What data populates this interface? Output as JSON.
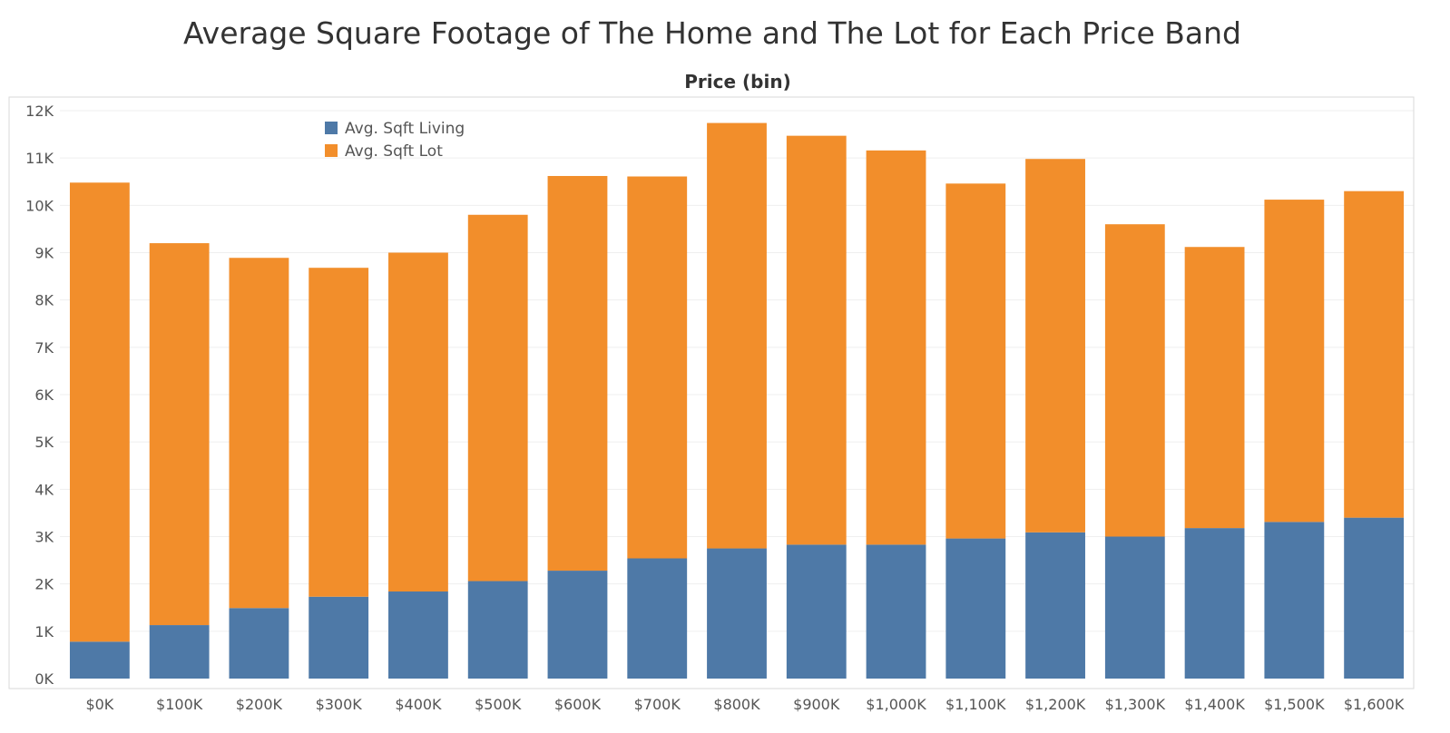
{
  "chart_data": {
    "type": "bar",
    "stacked": true,
    "title": "Average Square Footage of The Home and The Lot for Each Price Band",
    "header_label": "Price (bin)",
    "categories": [
      "$0K",
      "$100K",
      "$200K",
      "$300K",
      "$400K",
      "$500K",
      "$600K",
      "$700K",
      "$800K",
      "$900K",
      "$1,000K",
      "$1,100K",
      "$1,200K",
      "$1,300K",
      "$1,400K",
      "$1,500K",
      "$1,600K"
    ],
    "series": [
      {
        "name": "Avg. Sqft Living",
        "color": "#4e79a7",
        "values": [
          780,
          1130,
          1490,
          1730,
          1840,
          2060,
          2280,
          2540,
          2750,
          2830,
          2830,
          2960,
          3090,
          3000,
          3180,
          3310,
          3400
        ]
      },
      {
        "name": "Avg. Sqft Lot",
        "color": "#f28e2b",
        "values": [
          9700,
          8070,
          7400,
          6950,
          7160,
          7740,
          8340,
          8070,
          8990,
          8640,
          8330,
          7500,
          7890,
          6600,
          5940,
          6810,
          6900
        ]
      }
    ],
    "ylim": [
      0,
      12000
    ],
    "yticks": [
      0,
      1000,
      2000,
      3000,
      4000,
      5000,
      6000,
      7000,
      8000,
      9000,
      10000,
      11000,
      12000
    ],
    "ytick_labels": [
      "0K",
      "1K",
      "2K",
      "3K",
      "4K",
      "5K",
      "6K",
      "7K",
      "8K",
      "9K",
      "10K",
      "11K",
      "12K"
    ],
    "grid": true,
    "legend_position": "top-left"
  }
}
